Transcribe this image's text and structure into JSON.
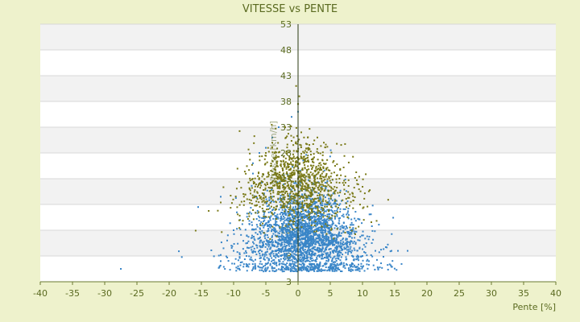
{
  "chart_data": {
    "type": "scatter",
    "title": "VITESSE vs PENTE",
    "xlabel": "Pente [%]",
    "ylabel": "Vitesse [km/h]",
    "xlim": [
      -40,
      40
    ],
    "ylim": [
      3,
      53
    ],
    "x_ticks": [
      -40,
      -35,
      -30,
      -25,
      -20,
      -15,
      -10,
      -5,
      0,
      5,
      10,
      15,
      20,
      25,
      30,
      35,
      40
    ],
    "y_ticks": [
      3,
      8,
      13,
      18,
      23,
      28,
      33,
      38,
      43,
      48,
      53
    ],
    "grid": "horizontal bands",
    "legend": "none",
    "series": [
      {
        "color": "#3a86c8",
        "cloud": {
          "center_x": 1.0,
          "spread_x": 3.2,
          "center_y": 11.5,
          "spread_y": 4.5,
          "y_min": 5.0,
          "y_max": 30.0,
          "point_count": 2600
        },
        "points": [
          [
            -27.5,
            5.5
          ],
          [
            -15.5,
            17.5
          ],
          [
            -12,
            19.5
          ],
          [
            -12,
            7
          ],
          [
            -12,
            8.2
          ],
          [
            -11,
            11
          ],
          [
            -10,
            13
          ],
          [
            -10,
            9
          ],
          [
            -9,
            15
          ],
          [
            -8,
            6
          ],
          [
            -8,
            8
          ],
          [
            -7,
            26
          ],
          [
            -7,
            24
          ],
          [
            -6,
            28
          ],
          [
            -5,
            29
          ],
          [
            -4,
            31
          ],
          [
            -3,
            33
          ],
          [
            -1,
            35
          ],
          [
            0,
            36
          ],
          [
            10,
            8
          ],
          [
            11,
            7
          ],
          [
            12,
            9
          ],
          [
            14.5,
            9
          ],
          [
            15.5,
            9
          ],
          [
            17,
            9
          ]
        ]
      },
      {
        "color": "#7a7a18",
        "cloud": {
          "center_x": 0.0,
          "spread_x": 3.0,
          "center_y": 22.0,
          "spread_y": 4.0,
          "y_min": 11.0,
          "y_max": 34.0,
          "point_count": 1100
        },
        "points": [
          [
            -0.3,
            41
          ],
          [
            0.2,
            39
          ],
          [
            0,
            37.5
          ],
          [
            -2,
            33
          ],
          [
            0.5,
            32
          ],
          [
            1.5,
            31
          ],
          [
            -4,
            30
          ],
          [
            -5,
            28
          ],
          [
            3,
            31
          ],
          [
            4,
            30
          ]
        ]
      }
    ]
  }
}
